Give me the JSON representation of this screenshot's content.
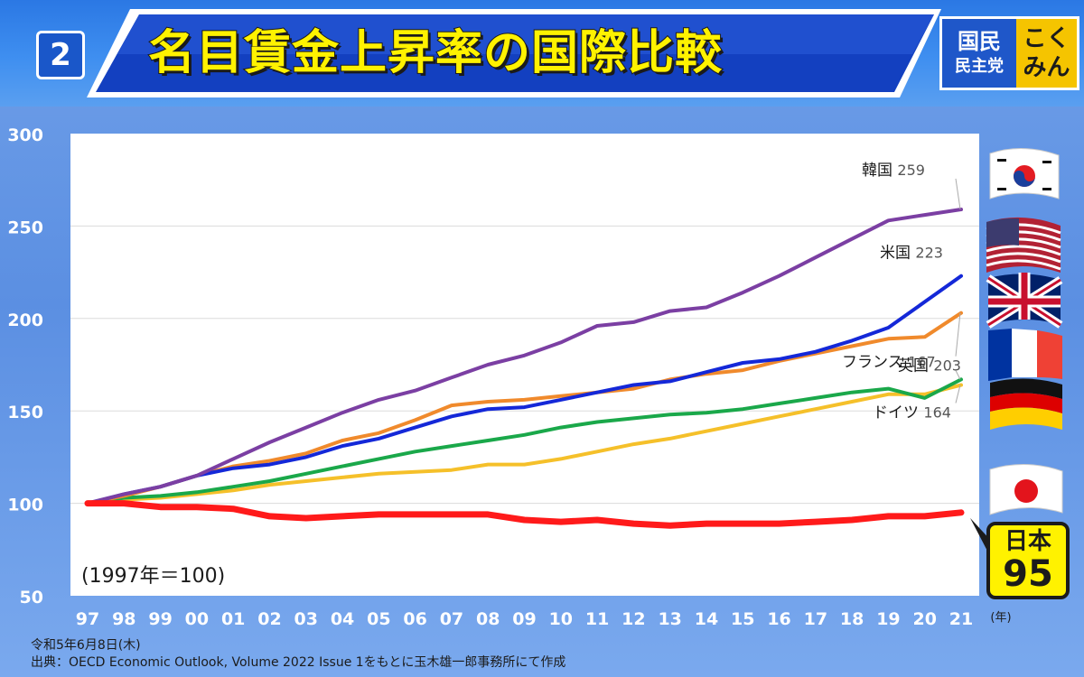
{
  "header": {
    "number": "2",
    "title": "名目賃金上昇率の国際比較",
    "logo_line1": "国民",
    "logo_line2": "民主党",
    "logo_right1": "こく",
    "logo_right2": "みん"
  },
  "colors": {
    "korea": "#7b3fa3",
    "usa": "#1428d8",
    "uk": "#f08a2c",
    "france": "#1aa84a",
    "germany": "#f5c02a",
    "japan": "#ff1a1a"
  },
  "chart_data": {
    "type": "line",
    "x": [
      "97",
      "98",
      "99",
      "00",
      "01",
      "02",
      "03",
      "04",
      "05",
      "06",
      "07",
      "08",
      "09",
      "10",
      "11",
      "12",
      "13",
      "14",
      "15",
      "16",
      "17",
      "18",
      "19",
      "20",
      "21"
    ],
    "x_unit": "(年)",
    "ylim": [
      50,
      300
    ],
    "yticks": [
      50,
      100,
      150,
      200,
      250,
      300
    ],
    "grid": true,
    "annotation": "(1997年＝100)",
    "series": [
      {
        "name": "韓国",
        "key": "korea",
        "end_label": "259",
        "values": [
          100,
          105,
          109,
          115,
          124,
          133,
          141,
          149,
          156,
          161,
          168,
          175,
          180,
          187,
          196,
          198,
          204,
          206,
          214,
          223,
          233,
          243,
          253,
          256,
          259
        ]
      },
      {
        "name": "米国",
        "key": "usa",
        "end_label": "223",
        "values": [
          100,
          105,
          109,
          115,
          119,
          121,
          125,
          131,
          135,
          141,
          147,
          151,
          152,
          156,
          160,
          164,
          166,
          171,
          176,
          178,
          182,
          188,
          195,
          209,
          223
        ]
      },
      {
        "name": "英国",
        "key": "uk",
        "end_label": "203",
        "values": [
          100,
          104,
          109,
          115,
          120,
          123,
          127,
          134,
          138,
          145,
          153,
          155,
          156,
          158,
          160,
          162,
          167,
          170,
          172,
          177,
          181,
          185,
          189,
          190,
          203
        ]
      },
      {
        "name": "フランス",
        "key": "france",
        "end_label": "167",
        "values": [
          100,
          103,
          104,
          106,
          109,
          112,
          116,
          120,
          124,
          128,
          131,
          134,
          137,
          141,
          144,
          146,
          148,
          149,
          151,
          154,
          157,
          160,
          162,
          157,
          167
        ]
      },
      {
        "name": "ドイツ",
        "key": "germany",
        "end_label": "164",
        "values": [
          100,
          102,
          103,
          105,
          107,
          110,
          112,
          114,
          116,
          117,
          118,
          121,
          121,
          124,
          128,
          132,
          135,
          139,
          143,
          147,
          151,
          155,
          159,
          159,
          164
        ]
      },
      {
        "name": "日本",
        "key": "japan",
        "end_label": "95",
        "values": [
          100,
          100,
          98,
          98,
          97,
          93,
          92,
          93,
          94,
          94,
          94,
          94,
          91,
          90,
          91,
          89,
          88,
          89,
          89,
          89,
          90,
          91,
          93,
          93,
          95
        ]
      }
    ]
  },
  "footer": {
    "date": "令和5年6月8日(木)",
    "source": "出典：OECD Economic Outlook, Volume 2022 Issue 1をもとに玉木雄一郎事務所にて作成"
  }
}
